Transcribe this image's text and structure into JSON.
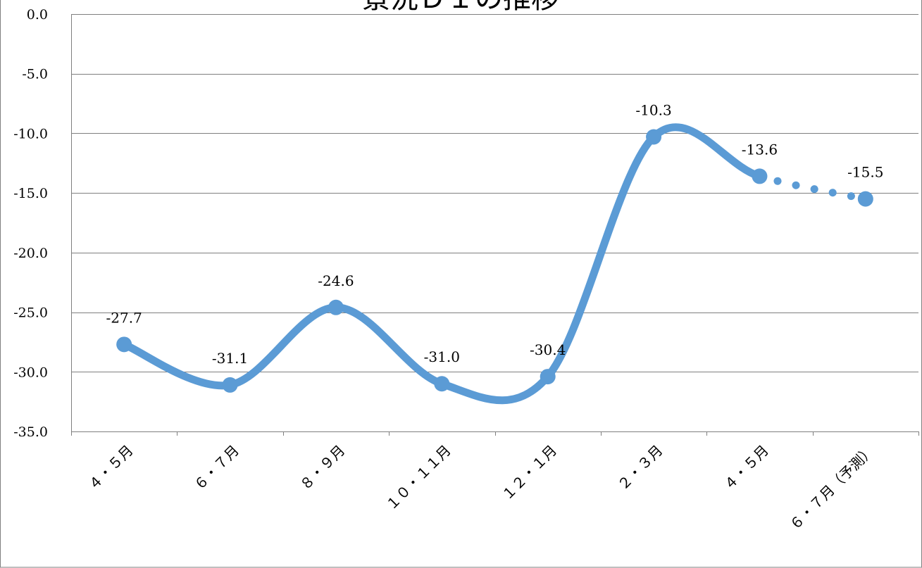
{
  "chart_data": {
    "type": "line",
    "title": "景況ＤＩの推移",
    "categories": [
      "４・５月",
      "６・７月",
      "８・９月",
      "１０・１１月",
      "１２・１月",
      "２・３月",
      "４・５月",
      "６・７月（予測）"
    ],
    "series": [
      {
        "values": [
          -27.7,
          -31.1,
          -24.6,
          -31.0,
          -30.4,
          -10.3,
          -13.6,
          -15.5
        ],
        "labels": [
          "-27.7",
          "-31.1",
          "-24.6",
          "-31.0",
          "-30.4",
          "-10.3",
          "-13.6",
          "-15.5"
        ]
      }
    ],
    "forecast_from_index": 6,
    "ylim": [
      -35,
      0
    ],
    "ytick_values": [
      0,
      -5,
      -10,
      -15,
      -20,
      -25,
      -30,
      -35
    ],
    "ytick_labels": [
      "0.0",
      "-5.0",
      "-10.0",
      "-15.0",
      "-20.0",
      "-25.0",
      "-30.0",
      "-35.0"
    ],
    "grid": true,
    "smooth": true,
    "xlabel": "",
    "ylabel": "",
    "colors": {
      "line": "#5b9bd5",
      "grid": "#7f7f7f",
      "axis": "#7f7f7f",
      "border": "#7f7f7f"
    }
  }
}
